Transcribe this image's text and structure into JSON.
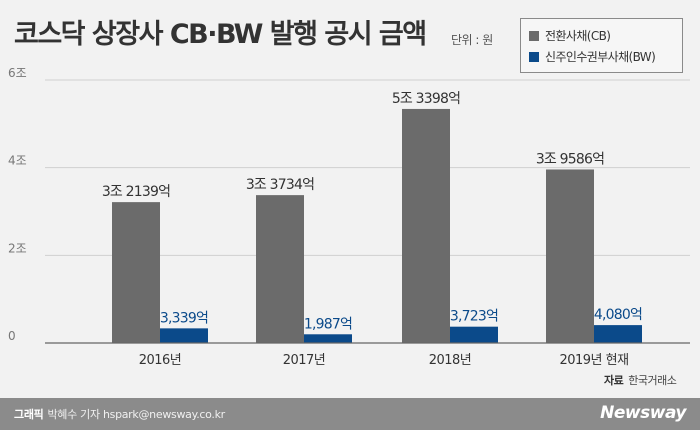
{
  "title": "코스닥 상장사 CB·BW 발행 공시 금액",
  "unit": "단위 : 원",
  "colors": {
    "cb": "#6b6b6b",
    "bw": "#0b4a8a",
    "grid": "#d0d0d0",
    "baseline": "#666666"
  },
  "legend": [
    {
      "label": "전환사채(CB)",
      "color": "#6b6b6b"
    },
    {
      "label": "신주인수권부사채(BW)",
      "color": "#0b4a8a"
    }
  ],
  "source": {
    "label": "자료",
    "text": "한국거래소"
  },
  "footer": {
    "credit_label": "그래픽",
    "credit_text": "박혜수 기자 hspark@newsway.co.kr",
    "brand": "Newsway"
  },
  "chart_data": {
    "type": "bar",
    "categories": [
      "2016년",
      "2017년",
      "2018년",
      "2019년 현재"
    ],
    "series": [
      {
        "name": "전환사채(CB)",
        "values": [
          32139,
          33734,
          53398,
          39586
        ],
        "labels": [
          "3조 2139억",
          "3조 3734억",
          "5조 3398억",
          "3조 9586억"
        ]
      },
      {
        "name": "신주인수권부사채(BW)",
        "values": [
          3339,
          1987,
          3723,
          4080
        ],
        "labels": [
          "3,339억",
          "1,987억",
          "3,723억",
          "4,080억"
        ]
      }
    ],
    "yticks": [
      0,
      20000,
      40000,
      60000
    ],
    "ytick_labels": [
      "0",
      "2조",
      "4조",
      "6조"
    ],
    "ylim": [
      0,
      60000
    ],
    "grid": true
  }
}
